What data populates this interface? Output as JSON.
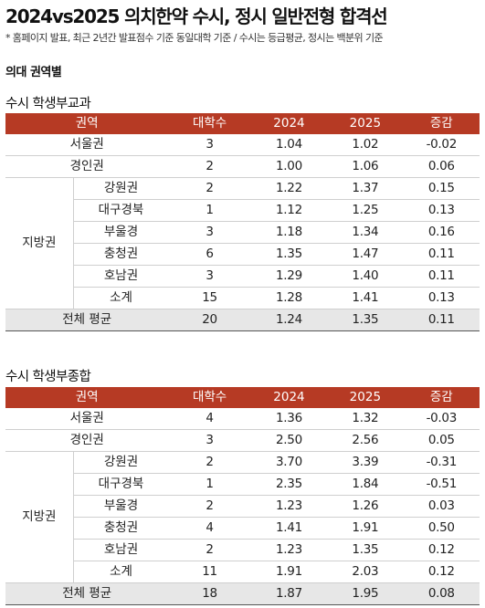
{
  "title": "2024vs2025 의치한약 수시, 정시 일반전형 합격선",
  "note": "* 홈페이지 발표, 최근 2년간 발표점수 기준 동일대학 기준 / 수시는 등급평균, 정시는 백분위 기준",
  "subtitle": "의대 권역별",
  "headers": [
    "권역",
    "대학수",
    "2024",
    "2025",
    "증감"
  ],
  "region_label": "지방권",
  "tables": [
    {
      "title": "수시 학생부교과",
      "rows": [
        {
          "region": "서울권",
          "count": "3",
          "y2024": "1.04",
          "y2025": "1.02",
          "diff": "-0.02"
        },
        {
          "region": "경인권",
          "count": "2",
          "y2024": "1.00",
          "y2025": "1.06",
          "diff": "0.06"
        },
        {
          "region": "강원권",
          "count": "2",
          "y2024": "1.22",
          "y2025": "1.37",
          "diff": "0.15"
        },
        {
          "region": "대구경북",
          "count": "1",
          "y2024": "1.12",
          "y2025": "1.25",
          "diff": "0.13"
        },
        {
          "region": "부울경",
          "count": "3",
          "y2024": "1.18",
          "y2025": "1.34",
          "diff": "0.16"
        },
        {
          "region": "충청권",
          "count": "6",
          "y2024": "1.35",
          "y2025": "1.47",
          "diff": "0.11"
        },
        {
          "region": "호남권",
          "count": "3",
          "y2024": "1.29",
          "y2025": "1.40",
          "diff": "0.11"
        },
        {
          "region": "소계",
          "count": "15",
          "y2024": "1.28",
          "y2025": "1.41",
          "diff": "0.13"
        },
        {
          "region": "전체 평균",
          "count": "20",
          "y2024": "1.24",
          "y2025": "1.35",
          "diff": "0.11"
        }
      ]
    },
    {
      "title": "수시 학생부종합",
      "rows": [
        {
          "region": "서울권",
          "count": "4",
          "y2024": "1.36",
          "y2025": "1.32",
          "diff": "-0.03"
        },
        {
          "region": "경인권",
          "count": "3",
          "y2024": "2.50",
          "y2025": "2.56",
          "diff": "0.05"
        },
        {
          "region": "강원권",
          "count": "2",
          "y2024": "3.70",
          "y2025": "3.39",
          "diff": "-0.31"
        },
        {
          "region": "대구경북",
          "count": "1",
          "y2024": "2.35",
          "y2025": "1.84",
          "diff": "-0.51"
        },
        {
          "region": "부울경",
          "count": "2",
          "y2024": "1.23",
          "y2025": "1.26",
          "diff": "0.03"
        },
        {
          "region": "충청권",
          "count": "4",
          "y2024": "1.41",
          "y2025": "1.91",
          "diff": "0.50"
        },
        {
          "region": "호남권",
          "count": "2",
          "y2024": "1.23",
          "y2025": "1.35",
          "diff": "0.12"
        },
        {
          "region": "소계",
          "count": "11",
          "y2024": "1.91",
          "y2025": "2.03",
          "diff": "0.12"
        },
        {
          "region": "전체 평균",
          "count": "18",
          "y2024": "1.87",
          "y2025": "1.95",
          "diff": "0.08"
        }
      ]
    }
  ]
}
